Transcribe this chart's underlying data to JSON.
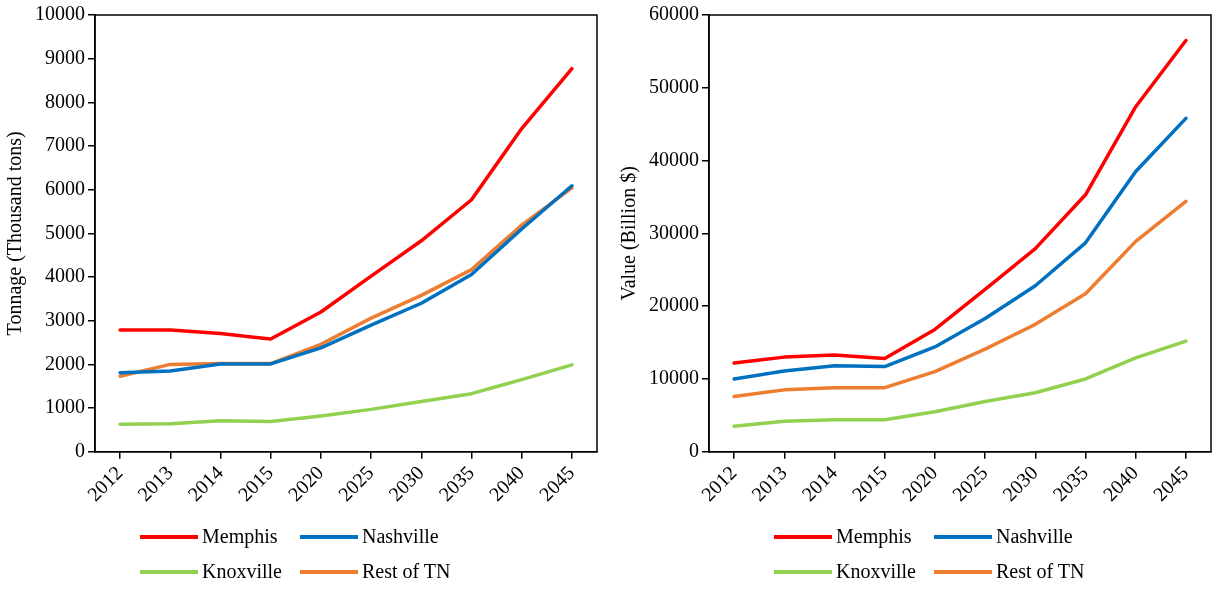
{
  "chart_data": [
    {
      "type": "line",
      "ylabel": "Tonnage (Thousand tons)",
      "categories": [
        "2012",
        "2013",
        "2014",
        "2015",
        "2020",
        "2025",
        "2030",
        "2035",
        "2040",
        "2045"
      ],
      "ylim": [
        0,
        10000
      ],
      "yticks": [
        0,
        1000,
        2000,
        3000,
        4000,
        5000,
        6000,
        7000,
        8000,
        9000,
        10000
      ],
      "grid": false,
      "legend": "bottom",
      "series": [
        {
          "name": "Memphis",
          "color": "#ff0000",
          "values": [
            2790,
            2790,
            2710,
            2580,
            3200,
            4020,
            4830,
            5770,
            7400,
            8770
          ]
        },
        {
          "name": "Nashville",
          "color": "#0070c0",
          "values": [
            1810,
            1850,
            2010,
            2010,
            2380,
            2900,
            3400,
            4060,
            5100,
            6090
          ]
        },
        {
          "name": "Knoxville",
          "color": "#92d050",
          "values": [
            630,
            640,
            710,
            690,
            820,
            970,
            1150,
            1330,
            1650,
            1990
          ]
        },
        {
          "name": "Rest of TN",
          "color": "#ed7d31",
          "values": [
            1730,
            2000,
            2020,
            2020,
            2460,
            3060,
            3580,
            4170,
            5190,
            6040
          ]
        }
      ]
    },
    {
      "type": "line",
      "ylabel": "Value (Billion $)",
      "categories": [
        "2012",
        "2013",
        "2014",
        "2015",
        "2020",
        "2025",
        "2030",
        "2035",
        "2040",
        "2045"
      ],
      "ylim": [
        0,
        60000
      ],
      "yticks": [
        0,
        10000,
        20000,
        30000,
        40000,
        50000,
        60000
      ],
      "grid": false,
      "legend": "bottom",
      "series": [
        {
          "name": "Memphis",
          "color": "#ff0000",
          "values": [
            12200,
            13000,
            13300,
            12800,
            16800,
            22300,
            27900,
            35300,
            47400,
            56500
          ]
        },
        {
          "name": "Nashville",
          "color": "#0070c0",
          "values": [
            10000,
            11100,
            11800,
            11700,
            14400,
            18300,
            22800,
            28700,
            38500,
            45800
          ]
        },
        {
          "name": "Knoxville",
          "color": "#92d050",
          "values": [
            3500,
            4200,
            4400,
            4400,
            5500,
            6900,
            8100,
            10000,
            12900,
            15200
          ]
        },
        {
          "name": "Rest of TN",
          "color": "#ed7d31",
          "values": [
            7600,
            8500,
            8800,
            8800,
            11000,
            14100,
            17500,
            21700,
            28900,
            34400
          ]
        }
      ]
    }
  ]
}
